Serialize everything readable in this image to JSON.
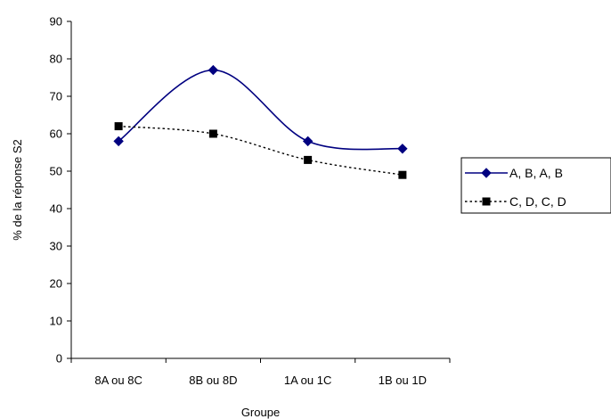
{
  "chart_data": {
    "type": "line",
    "title": "",
    "xlabel": "Groupe",
    "ylabel": "% de la réponse S2",
    "categories": [
      "8A ou 8C",
      "8B ou 8D",
      "1A ou 1C",
      "1B ou 1D"
    ],
    "y_ticks": [
      "0",
      "10",
      "20",
      "30",
      "40",
      "50",
      "60",
      "70",
      "80",
      "90"
    ],
    "ylim": [
      0,
      90
    ],
    "grid": false,
    "legend_position": "right",
    "series": [
      {
        "name": "A, B, A, B",
        "values": [
          58,
          77,
          58,
          56
        ],
        "color": "#000080",
        "line_style": "solid",
        "marker": "diamond"
      },
      {
        "name": "C, D, C, D",
        "values": [
          62,
          60,
          53,
          49
        ],
        "color": "#000000",
        "line_style": "dotted",
        "marker": "square"
      }
    ]
  }
}
